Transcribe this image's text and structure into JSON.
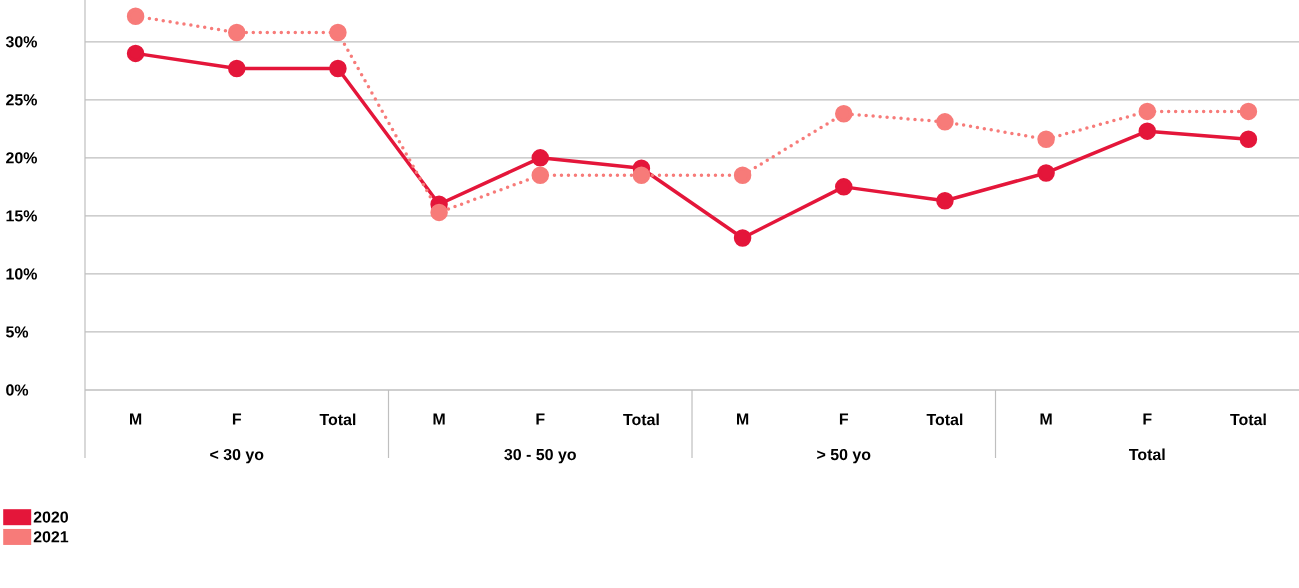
{
  "chart_data": {
    "type": "line",
    "categories": [
      "M",
      "F",
      "Total",
      "M",
      "F",
      "Total",
      "M",
      "F",
      "Total",
      "M",
      "F",
      "Total"
    ],
    "series": [
      {
        "name": "2020",
        "color": "#e4163a",
        "line_style": "solid",
        "values": [
          29.0,
          27.7,
          27.7,
          16.0,
          20.0,
          19.1,
          13.1,
          17.5,
          16.3,
          18.7,
          22.3,
          21.6
        ]
      },
      {
        "name": "2021",
        "color": "#f77b79",
        "line_style": "dotted",
        "values": [
          32.2,
          30.8,
          30.8,
          15.3,
          18.5,
          18.5,
          18.5,
          23.8,
          23.1,
          21.6,
          24.0,
          24.0
        ]
      }
    ],
    "annotations": [
      "< 30 yo",
      "30 - 50 yo",
      "> 50 yo",
      "Total"
    ],
    "ylim": [
      0,
      33.6
    ],
    "yticks": [
      {
        "value": 0,
        "label": "0%"
      },
      {
        "value": 5,
        "label": "5%"
      },
      {
        "value": 10,
        "label": "10%"
      },
      {
        "value": 15,
        "label": "15%"
      },
      {
        "value": 20,
        "label": "20%"
      },
      {
        "value": 25,
        "label": "25%"
      },
      {
        "value": 30,
        "label": "30%"
      }
    ],
    "grid": "y",
    "marker": "circle",
    "legend": "bottom left"
  }
}
